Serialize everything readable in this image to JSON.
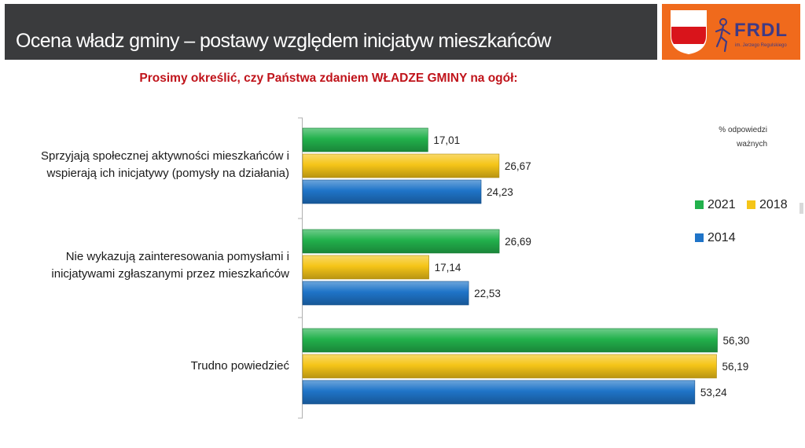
{
  "header": {
    "title": "Ocena władz gminy – postawy względem inicjatyw mieszkańców",
    "logo_text": "FRDL",
    "logo_subtext": "im. Jerzego Regulskiego"
  },
  "chart_data": {
    "type": "bar",
    "orientation": "horizontal",
    "title": "Prosimy określić, czy Państwa zdaniem WŁADZE GMINY na ogół:",
    "unit_note": [
      "% odpowiedzi",
      "ważnych"
    ],
    "categories": [
      [
        "Sprzyjają społecznej aktywności mieszkańców i",
        "wspierają ich inicjatywy (pomysły na działania)"
      ],
      [
        "Nie wykazują zainteresowania pomysłami i",
        "inicjatywami zgłaszanymi przez mieszkańców"
      ],
      [
        "Trudno powiedzieć"
      ]
    ],
    "series": [
      {
        "name": "2021",
        "color": "#22b14c",
        "values": [
          17.01,
          26.69,
          56.3
        ],
        "labels": [
          "17,01",
          "26,69",
          "56,30"
        ]
      },
      {
        "name": "2018",
        "color": "#f5c518",
        "values": [
          26.67,
          17.14,
          56.19
        ],
        "labels": [
          "26,67",
          "17,14",
          "56,19"
        ]
      },
      {
        "name": "2014",
        "color": "#1f74c8",
        "values": [
          24.23,
          22.53,
          53.24
        ],
        "labels": [
          "24,23",
          "22,53",
          "53,24"
        ]
      }
    ],
    "xlim": [
      0,
      60
    ],
    "legend_position": "right"
  }
}
